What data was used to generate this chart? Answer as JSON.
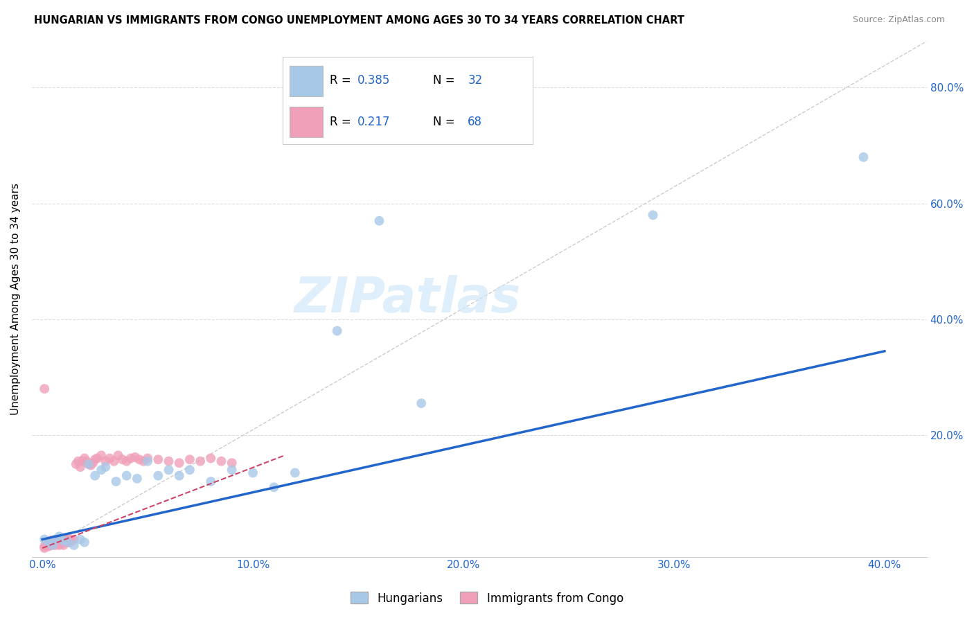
{
  "title": "HUNGARIAN VS IMMIGRANTS FROM CONGO UNEMPLOYMENT AMONG AGES 30 TO 34 YEARS CORRELATION CHART",
  "source": "Source: ZipAtlas.com",
  "ylabel": "Unemployment Among Ages 30 to 34 years",
  "xlim": [
    0.0,
    0.42
  ],
  "ylim": [
    0.0,
    0.88
  ],
  "xticks": [
    0.0,
    0.1,
    0.2,
    0.3,
    0.4
  ],
  "yticks": [
    0.2,
    0.4,
    0.6,
    0.8
  ],
  "blue_color": "#a8c8e8",
  "blue_line_color": "#2266cc",
  "pink_color": "#f0a0b8",
  "pink_line_color": "#cc4466",
  "diagonal_color": "#cccccc",
  "R_blue": 0.385,
  "N_blue": 32,
  "R_pink": 0.217,
  "N_pink": 68,
  "legend_labels": [
    "Hungarians",
    "Immigrants from Congo"
  ],
  "blue_scatter_x": [
    0.001,
    0.003,
    0.005,
    0.006,
    0.008,
    0.01,
    0.012,
    0.015,
    0.018,
    0.02,
    0.022,
    0.025,
    0.028,
    0.03,
    0.035,
    0.04,
    0.045,
    0.05,
    0.055,
    0.06,
    0.065,
    0.07,
    0.08,
    0.09,
    0.1,
    0.11,
    0.12,
    0.14,
    0.16,
    0.18,
    0.39,
    0.29
  ],
  "blue_scatter_y": [
    0.02,
    0.015,
    0.01,
    0.02,
    0.025,
    0.018,
    0.015,
    0.01,
    0.02,
    0.015,
    0.15,
    0.13,
    0.14,
    0.145,
    0.12,
    0.13,
    0.125,
    0.155,
    0.13,
    0.14,
    0.13,
    0.14,
    0.12,
    0.14,
    0.135,
    0.11,
    0.135,
    0.38,
    0.57,
    0.255,
    0.68,
    0.58
  ],
  "pink_scatter_x": [
    0.001,
    0.001,
    0.002,
    0.002,
    0.002,
    0.003,
    0.003,
    0.003,
    0.004,
    0.004,
    0.004,
    0.005,
    0.005,
    0.005,
    0.006,
    0.006,
    0.006,
    0.007,
    0.007,
    0.007,
    0.008,
    0.008,
    0.008,
    0.009,
    0.009,
    0.01,
    0.01,
    0.01,
    0.011,
    0.011,
    0.012,
    0.012,
    0.013,
    0.013,
    0.014,
    0.015,
    0.016,
    0.017,
    0.018,
    0.019,
    0.02,
    0.021,
    0.022,
    0.023,
    0.024,
    0.025,
    0.026,
    0.028,
    0.03,
    0.032,
    0.034,
    0.036,
    0.038,
    0.04,
    0.042,
    0.044,
    0.046,
    0.048,
    0.05,
    0.055,
    0.06,
    0.065,
    0.07,
    0.075,
    0.08,
    0.085,
    0.09,
    0.001
  ],
  "pink_scatter_y": [
    0.005,
    0.008,
    0.01,
    0.012,
    0.015,
    0.008,
    0.01,
    0.012,
    0.01,
    0.015,
    0.018,
    0.012,
    0.015,
    0.018,
    0.01,
    0.015,
    0.018,
    0.012,
    0.015,
    0.02,
    0.01,
    0.015,
    0.018,
    0.012,
    0.018,
    0.01,
    0.015,
    0.02,
    0.015,
    0.02,
    0.015,
    0.02,
    0.015,
    0.02,
    0.018,
    0.02,
    0.15,
    0.155,
    0.145,
    0.155,
    0.16,
    0.155,
    0.15,
    0.148,
    0.152,
    0.158,
    0.16,
    0.165,
    0.155,
    0.16,
    0.155,
    0.165,
    0.158,
    0.155,
    0.16,
    0.162,
    0.158,
    0.155,
    0.16,
    0.158,
    0.155,
    0.152,
    0.158,
    0.155,
    0.16,
    0.155,
    0.152,
    0.28
  ],
  "blue_line_x": [
    0.0,
    0.4
  ],
  "blue_line_y": [
    0.02,
    0.345
  ],
  "pink_line_x": [
    0.0,
    0.115
  ],
  "pink_line_y": [
    0.005,
    0.165
  ],
  "background_color": "#ffffff",
  "grid_color": "#dddddd",
  "watermark_text": "ZIPatlas",
  "watermark_color": "#d0e8f8"
}
